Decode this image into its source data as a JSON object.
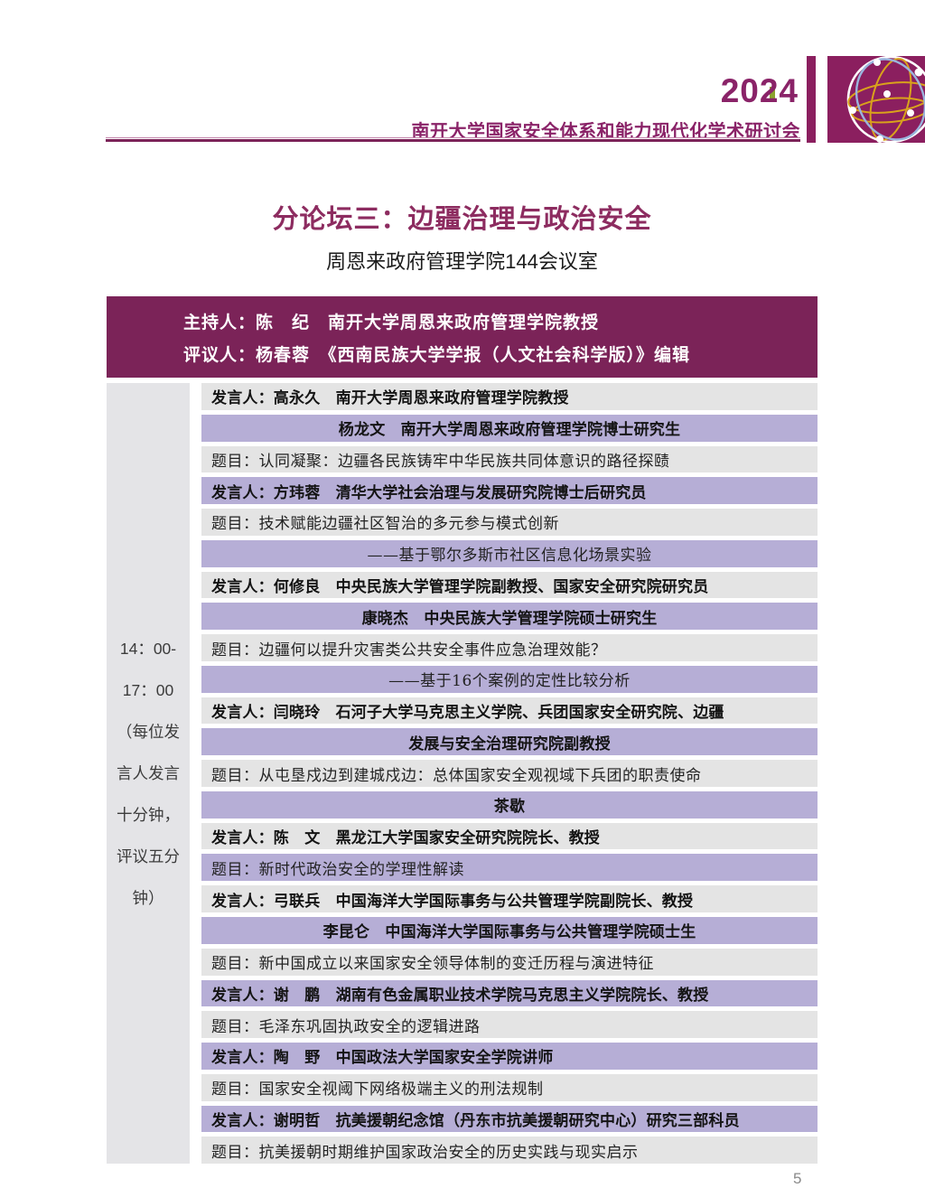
{
  "page": {
    "year": "2024",
    "conference_title": "南开大学国家安全体系和能力现代化学术研讨会",
    "forum_title": "分论坛三：边疆治理与政治安全",
    "venue": "周恩来政府管理学院144会议室",
    "page_number": "5"
  },
  "colors": {
    "brand_purple": "#7b2358",
    "light_purple": "#b6aed6",
    "light_gray": "#e4e4e4",
    "left_col_gray": "#e4e4e7",
    "title_color": "#8d2c60",
    "header_text": "#8a2368",
    "logo_purple": "#8b1f5f",
    "accent_green": "#8ba32e",
    "gold": "#d9a21b",
    "blue": "#9ab4dd"
  },
  "moderator_bar": {
    "host_line": "主持人：陈　纪　南开大学周恩来政府管理学院教授",
    "reviewer_line": "评议人：杨春蓉　《西南民族大学学报（人文社会科学版）》编辑"
  },
  "schedule": {
    "time_lines": [
      "14：00-",
      "17：00",
      "（每位发",
      "言人发言",
      "十分钟，",
      "评议五分",
      "钟）"
    ],
    "rows": [
      {
        "text": "发言人：高永久　南开大学周恩来政府管理学院教授",
        "bg": "gray",
        "align": "left",
        "font": "hei"
      },
      {
        "text": "杨龙文　南开大学周恩来政府管理学院博士研究生",
        "bg": "purple",
        "align": "center",
        "font": "hei"
      },
      {
        "text": "题目：认同凝聚：边疆各民族铸牢中华民族共同体意识的路径探赜",
        "bg": "gray",
        "align": "left",
        "font": "kai"
      },
      {
        "text": "发言人：方玮蓉　清华大学社会治理与发展研究院博士后研究员",
        "bg": "purple",
        "align": "left",
        "font": "hei"
      },
      {
        "text": "题目：技术赋能边疆社区智治的多元参与模式创新",
        "bg": "gray",
        "align": "left",
        "font": "kai"
      },
      {
        "text": "——基于鄂尔多斯市社区信息化场景实验",
        "bg": "purple",
        "align": "center",
        "font": "kai"
      },
      {
        "text": "发言人：何修良　中央民族大学管理学院副教授、国家安全研究院研究员",
        "bg": "gray",
        "align": "left",
        "font": "hei"
      },
      {
        "text": "康晓杰　中央民族大学管理学院硕士研究生",
        "bg": "purple",
        "align": "center",
        "font": "hei"
      },
      {
        "text": "题目：边疆何以提升灾害类公共安全事件应急治理效能？",
        "bg": "gray",
        "align": "left",
        "font": "kai"
      },
      {
        "text": "——基于16个案例的定性比较分析",
        "bg": "purple",
        "align": "center",
        "font": "kai"
      },
      {
        "text": "发言人：闫晓玲　石河子大学马克思主义学院、兵团国家安全研究院、边疆",
        "bg": "gray",
        "align": "left",
        "font": "hei"
      },
      {
        "text": "发展与安全治理研究院副教授",
        "bg": "purple",
        "align": "center",
        "font": "hei"
      },
      {
        "text": "题目：从屯垦戍边到建城戍边：总体国家安全观视域下兵团的职责使命",
        "bg": "gray",
        "align": "left",
        "font": "kai"
      },
      {
        "text": "茶歇",
        "bg": "purple",
        "align": "center",
        "font": "hei"
      },
      {
        "text": "发言人：陈　文　黑龙江大学国家安全研究院院长、教授",
        "bg": "gray",
        "align": "left",
        "font": "hei"
      },
      {
        "text": "题目：新时代政治安全的学理性解读",
        "bg": "purple",
        "align": "left",
        "font": "kai"
      },
      {
        "text": "发言人：弓联兵　中国海洋大学国际事务与公共管理学院副院长、教授",
        "bg": "gray",
        "align": "left",
        "font": "hei"
      },
      {
        "text": "李昆仑　中国海洋大学国际事务与公共管理学院硕士生",
        "bg": "purple",
        "align": "center",
        "font": "hei"
      },
      {
        "text": "题目：新中国成立以来国家安全领导体制的变迁历程与演进特征",
        "bg": "gray",
        "align": "left",
        "font": "kai"
      },
      {
        "text": "发言人：谢　鹏　湖南有色金属职业技术学院马克思主义学院院长、教授",
        "bg": "purple",
        "align": "left",
        "font": "hei"
      },
      {
        "text": "题目：毛泽东巩固执政安全的逻辑进路",
        "bg": "gray",
        "align": "left",
        "font": "kai"
      },
      {
        "text": "发言人：陶　野　中国政法大学国家安全学院讲师",
        "bg": "purple",
        "align": "left",
        "font": "hei"
      },
      {
        "text": "题目：国家安全视阈下网络极端主义的刑法规制",
        "bg": "gray",
        "align": "left",
        "font": "kai"
      },
      {
        "text": "发言人：谢明哲　抗美援朝纪念馆（丹东市抗美援朝研究中心）研究三部科员",
        "bg": "purple",
        "align": "left",
        "font": "hei"
      },
      {
        "text": "题目：抗美援朝时期维护国家政治安全的历史实践与现实启示",
        "bg": "gray",
        "align": "left",
        "font": "kai"
      }
    ]
  }
}
